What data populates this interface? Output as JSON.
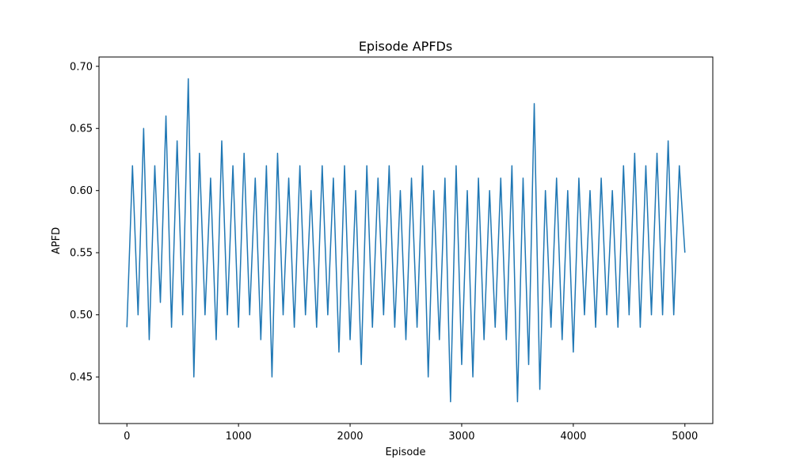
{
  "chart_data": {
    "type": "line",
    "title": "Episode APFDs",
    "xlabel": "Episode",
    "ylabel": "APFD",
    "xlim": [
      -250,
      5250
    ],
    "ylim": [
      0.4125,
      0.7075
    ],
    "xticks": [
      0,
      1000,
      2000,
      3000,
      4000,
      5000
    ],
    "xtick_labels": [
      "0",
      "1000",
      "2000",
      "3000",
      "4000",
      "5000"
    ],
    "yticks": [
      0.45,
      0.5,
      0.55,
      0.6,
      0.65,
      0.7
    ],
    "ytick_labels": [
      "0.45",
      "0.50",
      "0.55",
      "0.60",
      "0.65",
      "0.70"
    ],
    "grid": false,
    "series": [
      {
        "color": "#1f77b4",
        "x": [
          0,
          50,
          100,
          150,
          200,
          250,
          300,
          350,
          400,
          450,
          500,
          550,
          600,
          650,
          700,
          750,
          800,
          850,
          900,
          950,
          1000,
          1050,
          1100,
          1150,
          1200,
          1250,
          1300,
          1350,
          1400,
          1450,
          1500,
          1550,
          1600,
          1650,
          1700,
          1750,
          1800,
          1850,
          1900,
          1950,
          2000,
          2050,
          2100,
          2150,
          2200,
          2250,
          2300,
          2350,
          2400,
          2450,
          2500,
          2550,
          2600,
          2650,
          2700,
          2750,
          2800,
          2850,
          2900,
          2950,
          3000,
          3050,
          3100,
          3150,
          3200,
          3250,
          3300,
          3350,
          3400,
          3450,
          3500,
          3550,
          3600,
          3650,
          3700,
          3750,
          3800,
          3850,
          3900,
          3950,
          4000,
          4050,
          4100,
          4150,
          4200,
          4250,
          4300,
          4350,
          4400,
          4450,
          4500,
          4550,
          4600,
          4650,
          4700,
          4750,
          4800,
          4850,
          4900,
          4950,
          5000
        ],
        "y": [
          0.49,
          0.62,
          0.5,
          0.65,
          0.48,
          0.62,
          0.51,
          0.66,
          0.49,
          0.64,
          0.5,
          0.69,
          0.45,
          0.63,
          0.5,
          0.61,
          0.48,
          0.64,
          0.5,
          0.62,
          0.49,
          0.63,
          0.5,
          0.61,
          0.48,
          0.62,
          0.45,
          0.63,
          0.5,
          0.61,
          0.49,
          0.62,
          0.5,
          0.6,
          0.49,
          0.62,
          0.5,
          0.61,
          0.47,
          0.62,
          0.48,
          0.6,
          0.46,
          0.62,
          0.49,
          0.61,
          0.5,
          0.62,
          0.49,
          0.6,
          0.48,
          0.61,
          0.49,
          0.62,
          0.45,
          0.6,
          0.48,
          0.61,
          0.43,
          0.62,
          0.46,
          0.6,
          0.45,
          0.61,
          0.48,
          0.6,
          0.49,
          0.61,
          0.48,
          0.62,
          0.43,
          0.61,
          0.46,
          0.67,
          0.44,
          0.6,
          0.49,
          0.61,
          0.48,
          0.6,
          0.47,
          0.61,
          0.5,
          0.6,
          0.49,
          0.61,
          0.5,
          0.6,
          0.49,
          0.62,
          0.5,
          0.63,
          0.49,
          0.62,
          0.5,
          0.63,
          0.5,
          0.64,
          0.5,
          0.62,
          0.55
        ]
      }
    ]
  }
}
